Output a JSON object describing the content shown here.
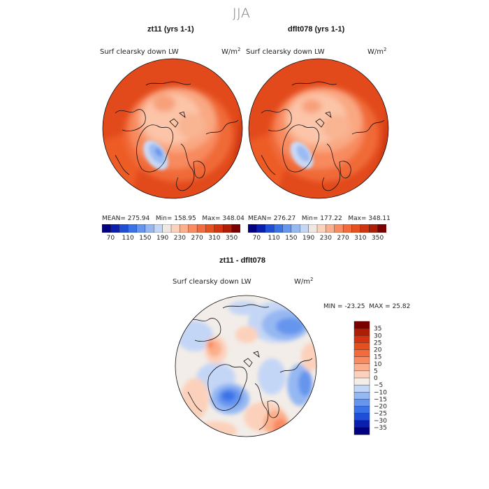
{
  "figure": {
    "season": "JJA"
  },
  "chart_data": [
    {
      "type": "heatmap",
      "projection": "polar stereographic (Arctic)",
      "title": "zt11 (yrs 1-1)",
      "variable_label": "Surf clearsky down LW",
      "units": "W/m",
      "units_exp": "2",
      "stats": {
        "mean_label": "MEAN=",
        "mean": "275.94",
        "min_label": "Min=",
        "min": "158.95",
        "max_label": "Max=",
        "max": "348.04"
      },
      "colorbar": {
        "levels": [
          70,
          90,
          110,
          130,
          150,
          170,
          190,
          210,
          230,
          250,
          270,
          290,
          310,
          330,
          350
        ],
        "tick_labels": [
          "70",
          "110",
          "150",
          "190",
          "230",
          "270",
          "310",
          "350"
        ],
        "colors": [
          "#000080",
          "#0b1fae",
          "#1f4fd8",
          "#3a72e8",
          "#6695ee",
          "#95b7f2",
          "#c4d6f6",
          "#efe8e1",
          "#fcd1bb",
          "#fbaf8c",
          "#f98b62",
          "#f36b3d",
          "#e6501f",
          "#d23411",
          "#b01d05",
          "#7b0000"
        ]
      }
    },
    {
      "type": "heatmap",
      "projection": "polar stereographic (Arctic)",
      "title": "dflt078 (yrs 1-1)",
      "variable_label": "Surf clearsky down LW",
      "units": "W/m",
      "units_exp": "2",
      "stats": {
        "mean_label": "MEAN=",
        "mean": "276.27",
        "min_label": "Min=",
        "min": "177.22",
        "max_label": "Max=",
        "max": "348.11"
      },
      "colorbar": {
        "levels": [
          70,
          90,
          110,
          130,
          150,
          170,
          190,
          210,
          230,
          250,
          270,
          290,
          310,
          330,
          350
        ],
        "tick_labels": [
          "70",
          "110",
          "150",
          "190",
          "230",
          "270",
          "310",
          "350"
        ],
        "colors": [
          "#000080",
          "#0b1fae",
          "#1f4fd8",
          "#3a72e8",
          "#6695ee",
          "#95b7f2",
          "#c4d6f6",
          "#efe8e1",
          "#fcd1bb",
          "#fbaf8c",
          "#f98b62",
          "#f36b3d",
          "#e6501f",
          "#d23411",
          "#b01d05",
          "#7b0000"
        ]
      }
    },
    {
      "type": "heatmap",
      "projection": "polar stereographic (Arctic)",
      "title": "zt11 - dflt078",
      "variable_label": "Surf clearsky down LW",
      "units": "W/m",
      "units_exp": "2",
      "stats": {
        "min_label": "MIN =",
        "min": "-23.25",
        "max_label": "MAX =",
        "max": "25.82"
      },
      "colorbar": {
        "orientation": "vertical",
        "levels": [
          35,
          30,
          25,
          20,
          15,
          10,
          5,
          0,
          -5,
          -10,
          -15,
          -20,
          -25,
          -30,
          -35
        ],
        "tick_labels": [
          "35",
          "30",
          "25",
          "20",
          "15",
          "10",
          "5",
          "0",
          "−5",
          "−10",
          "−15",
          "−20",
          "−25",
          "−30",
          "−35"
        ],
        "colors": [
          "#7b0000",
          "#b01d05",
          "#d23411",
          "#e6501f",
          "#f36b3d",
          "#f98b62",
          "#fbaf8c",
          "#fcd1bb",
          "#f2ede8",
          "#c4d6f6",
          "#95b7f2",
          "#6695ee",
          "#3a72e8",
          "#1f4fd8",
          "#0b1fae",
          "#000080"
        ]
      }
    }
  ]
}
